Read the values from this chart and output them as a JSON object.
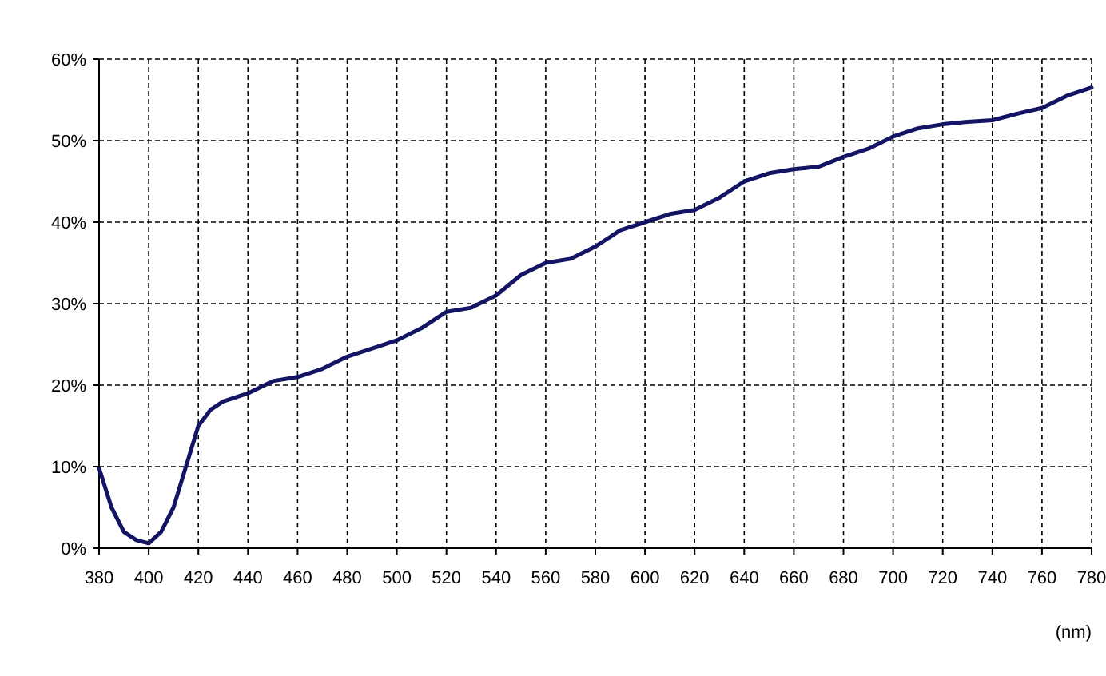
{
  "chart_data": {
    "type": "line",
    "xlabel": "(nm)",
    "x": [
      380,
      385,
      390,
      395,
      400,
      405,
      410,
      415,
      420,
      425,
      430,
      440,
      450,
      460,
      470,
      480,
      490,
      500,
      510,
      520,
      530,
      540,
      550,
      560,
      570,
      580,
      590,
      600,
      610,
      620,
      630,
      640,
      650,
      660,
      670,
      680,
      690,
      700,
      710,
      720,
      730,
      740,
      750,
      760,
      770,
      780
    ],
    "series": [
      {
        "color": "#141464",
        "values": [
          9.8,
          5,
          2,
          1,
          0.6,
          2,
          5,
          10,
          15,
          17,
          18,
          19,
          20.5,
          21,
          22,
          23.5,
          24.5,
          25.5,
          27,
          29,
          29.5,
          31,
          33.5,
          35,
          35.5,
          37,
          39,
          40,
          41,
          41.5,
          43,
          45,
          46,
          46.5,
          46.8,
          48,
          49,
          50.5,
          51.5,
          52,
          52.3,
          52.5,
          53.3,
          54,
          55.5,
          56.5
        ]
      }
    ],
    "xlim": [
      380,
      780
    ],
    "xticks": [
      380,
      400,
      420,
      440,
      460,
      480,
      500,
      520,
      540,
      560,
      580,
      600,
      620,
      640,
      660,
      680,
      700,
      720,
      740,
      760,
      780
    ],
    "ylim": [
      0,
      60
    ],
    "yticks": [
      {
        "value": 0,
        "label": "0%"
      },
      {
        "value": 10,
        "label": "10%"
      },
      {
        "value": 20,
        "label": "20%"
      },
      {
        "value": 30,
        "label": "30%"
      },
      {
        "value": 40,
        "label": "40%"
      },
      {
        "value": 50,
        "label": "50%"
      },
      {
        "value": 60,
        "label": "60%"
      }
    ],
    "grid": true,
    "marker": "none",
    "line_style": "solid"
  }
}
